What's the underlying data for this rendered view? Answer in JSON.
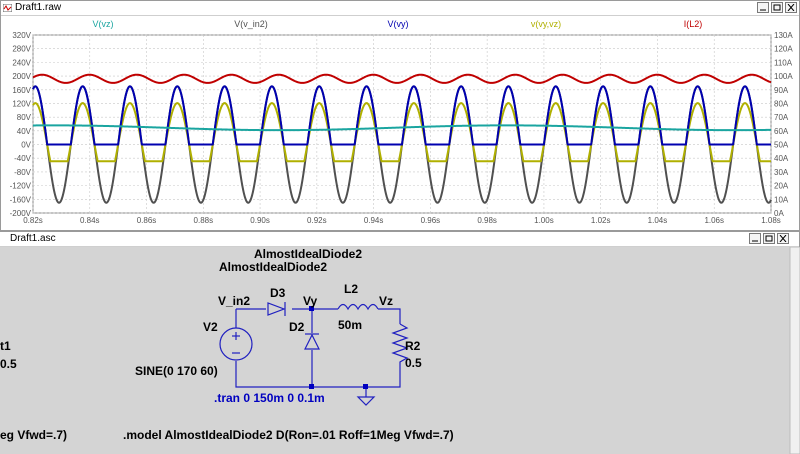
{
  "waveform_window": {
    "title": "Draft1.raw",
    "trace_labels": [
      "V(vz)",
      "V(v_in2)",
      "V(vy)",
      "v(vy,vz)",
      "I(L2)"
    ],
    "trace_colors": [
      "#1aa5a0",
      "#505050",
      "#0000b0",
      "#b0b000",
      "#c00000"
    ]
  },
  "schematic_window": {
    "title": "Draft1.asc",
    "model_ref_1": "AlmostIdealDiode2",
    "model_ref_2": "AlmostIdealDiode2",
    "net_vin": "V_in2",
    "d3_label": "D3",
    "net_vy": "Vy",
    "l2_label": "L2",
    "net_vz": "Vz",
    "v2_label": "V2",
    "d2_label": "D2",
    "l2_value": "50m",
    "r2_label": "R2",
    "r2_value": "0.5",
    "source_value": "SINE(0 170 60)",
    "tran_directive": ".tran 0 150m 0 0.1m",
    "left_partial_1": "t1",
    "left_partial_2": "0.5",
    "left_partial_3": "eg Vfwd=.7)",
    "model_directive": ".model AlmostIdealDiode2 D(Ron=.01 Roff=1Meg Vfwd=.7)"
  },
  "chart_data": {
    "type": "line",
    "xlabel": "",
    "ylabel": "",
    "x_ticks": [
      "0.82s",
      "0.84s",
      "0.86s",
      "0.88s",
      "0.90s",
      "0.92s",
      "0.94s",
      "0.96s",
      "0.98s",
      "1.00s",
      "1.02s",
      "1.04s",
      "1.06s",
      "1.08s"
    ],
    "xlim": [
      0.82,
      1.08
    ],
    "left_ticks": [
      "320V",
      "280V",
      "240V",
      "200V",
      "160V",
      "120V",
      "80V",
      "40V",
      "0V",
      "-40V",
      "-80V",
      "-120V",
      "-160V",
      "-200V"
    ],
    "ylim_left": [
      -200,
      320
    ],
    "right_ticks": [
      "130A",
      "120A",
      "110A",
      "100A",
      "90A",
      "80A",
      "70A",
      "60A",
      "50A",
      "40A",
      "30A",
      "20A",
      "10A",
      "0A"
    ],
    "ylim_right": [
      0,
      130
    ],
    "grid": true,
    "series": [
      {
        "name": "V(vz)",
        "axis": "left",
        "description": "ripple about 49 V",
        "mean": 49,
        "ripple": 7,
        "ripple_freq_hz": 6.25
      },
      {
        "name": "V(v_in2)",
        "axis": "left",
        "amplitude": 170,
        "freq_hz": 60
      },
      {
        "name": "V(vy)",
        "axis": "left",
        "amplitude": 170,
        "freq_hz": 60,
        "floor": 0
      },
      {
        "name": "v(vy,vz)",
        "axis": "left",
        "amplitude": 121,
        "freq_hz": 60,
        "floor": -49
      },
      {
        "name": "I(L2)",
        "axis": "right",
        "mean": 98,
        "ripple": 3,
        "freq_hz": 60
      }
    ]
  }
}
